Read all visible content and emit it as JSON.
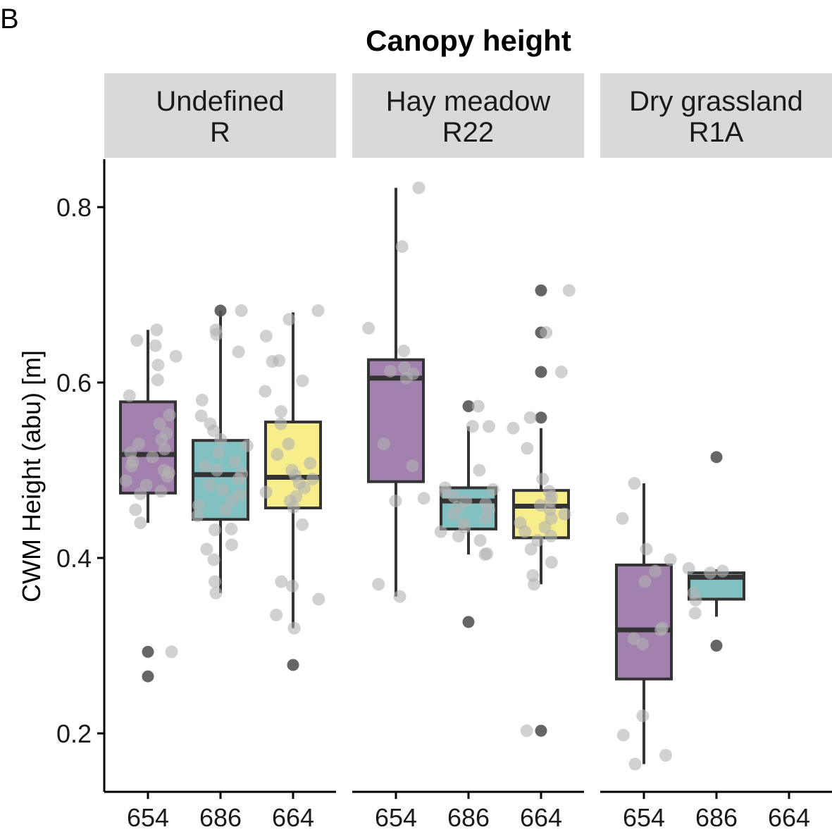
{
  "panel_tag": "B",
  "chart_data": {
    "type": "box",
    "title": "Canopy height",
    "ylabel": "CWM Height (abu) [m]",
    "xlabel": "",
    "ylim": [
      0.13,
      0.85
    ],
    "yticks": [
      0.2,
      0.4,
      0.6,
      0.8
    ],
    "ytick_labels": [
      "0.2",
      "0.4",
      "0.6",
      "0.8"
    ],
    "categories": [
      "654",
      "686",
      "664"
    ],
    "colors": {
      "654": "#7a4b8c",
      "686": "#4da6a6",
      "664": "#f5e65a"
    },
    "point_color": "#b3b3b3",
    "outlier_color": "#555555",
    "facets": [
      {
        "label_line1": "Undefined",
        "label_line2": "R",
        "groups": [
          {
            "category": "654",
            "box": {
              "q1": 0.474,
              "median": 0.518,
              "q3": 0.578,
              "lower_whisker": 0.44,
              "upper_whisker": 0.66
            },
            "outliers": [
              0.293,
              0.265
            ],
            "points": [
              0.66,
              0.648,
              0.642,
              0.63,
              0.62,
              0.603,
              0.585,
              0.563,
              0.553,
              0.542,
              0.535,
              0.53,
              0.524,
              0.52,
              0.515,
              0.51,
              0.505,
              0.5,
              0.497,
              0.493,
              0.488,
              0.483,
              0.476,
              0.473,
              0.455,
              0.44,
              0.293
            ]
          },
          {
            "category": "686",
            "box": {
              "q1": 0.444,
              "median": 0.495,
              "q3": 0.534,
              "lower_whisker": 0.36,
              "upper_whisker": 0.682
            },
            "outliers": [
              0.682
            ],
            "points": [
              0.682,
              0.66,
              0.655,
              0.635,
              0.58,
              0.562,
              0.553,
              0.545,
              0.535,
              0.528,
              0.52,
              0.51,
              0.505,
              0.5,
              0.496,
              0.49,
              0.483,
              0.478,
              0.472,
              0.466,
              0.46,
              0.455,
              0.448,
              0.433,
              0.432,
              0.415,
              0.41,
              0.398,
              0.373,
              0.36
            ]
          },
          {
            "category": "664",
            "box": {
              "q1": 0.457,
              "median": 0.492,
              "q3": 0.555,
              "lower_whisker": 0.32,
              "upper_whisker": 0.68
            },
            "outliers": [
              0.278
            ],
            "points": [
              0.682,
              0.672,
              0.653,
              0.625,
              0.624,
              0.602,
              0.59,
              0.567,
              0.553,
              0.53,
              0.518,
              0.508,
              0.5,
              0.494,
              0.49,
              0.485,
              0.48,
              0.475,
              0.47,
              0.465,
              0.458,
              0.438,
              0.373,
              0.368,
              0.353,
              0.335,
              0.32
            ]
          }
        ]
      },
      {
        "label_line1": "Hay meadow",
        "label_line2": "R22",
        "groups": [
          {
            "category": "654",
            "box": {
              "q1": 0.487,
              "median": 0.605,
              "q3": 0.626,
              "lower_whisker": 0.356,
              "upper_whisker": 0.822
            },
            "outliers": [],
            "points": [
              0.822,
              0.755,
              0.662,
              0.636,
              0.617,
              0.613,
              0.61,
              0.605,
              0.53,
              0.505,
              0.468,
              0.465,
              0.37,
              0.356
            ]
          },
          {
            "category": "686",
            "box": {
              "q1": 0.433,
              "median": 0.465,
              "q3": 0.48,
              "lower_whisker": 0.404,
              "upper_whisker": 0.55
            },
            "outliers": [
              0.573,
              0.327
            ],
            "points": [
              0.573,
              0.55,
              0.55,
              0.5,
              0.48,
              0.478,
              0.475,
              0.47,
              0.465,
              0.462,
              0.458,
              0.455,
              0.45,
              0.445,
              0.44,
              0.435,
              0.43,
              0.425,
              0.42,
              0.405,
              0.404
            ]
          },
          {
            "category": "664",
            "box": {
              "q1": 0.423,
              "median": 0.459,
              "q3": 0.477,
              "lower_whisker": 0.37,
              "upper_whisker": 0.548
            },
            "outliers": [
              0.705,
              0.657,
              0.612,
              0.56,
              0.203
            ],
            "points": [
              0.705,
              0.657,
              0.612,
              0.56,
              0.548,
              0.525,
              0.49,
              0.476,
              0.47,
              0.465,
              0.46,
              0.455,
              0.45,
              0.445,
              0.44,
              0.435,
              0.43,
              0.425,
              0.42,
              0.41,
              0.395,
              0.38,
              0.37,
              0.203
            ]
          }
        ]
      },
      {
        "label_line1": "Dry grassland",
        "label_line2": "R1A",
        "groups": [
          {
            "category": "654",
            "box": {
              "q1": 0.262,
              "median": 0.318,
              "q3": 0.392,
              "lower_whisker": 0.165,
              "upper_whisker": 0.485
            },
            "outliers": [],
            "points": [
              0.485,
              0.445,
              0.41,
              0.398,
              0.385,
              0.373,
              0.32,
              0.318,
              0.308,
              0.302,
              0.22,
              0.198,
              0.175,
              0.165
            ]
          },
          {
            "category": "686",
            "box": {
              "q1": 0.353,
              "median": 0.378,
              "q3": 0.383,
              "lower_whisker": 0.333,
              "upper_whisker": 0.387
            },
            "outliers": [
              0.515,
              0.3
            ],
            "points": [
              0.388,
              0.385,
              0.383,
              0.36,
              0.352,
              0.337
            ]
          }
        ]
      }
    ]
  }
}
